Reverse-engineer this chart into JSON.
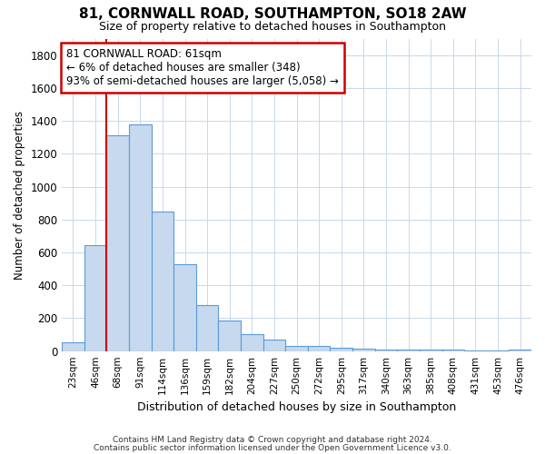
{
  "title1": "81, CORNWALL ROAD, SOUTHAMPTON, SO18 2AW",
  "title2": "Size of property relative to detached houses in Southampton",
  "xlabel": "Distribution of detached houses by size in Southampton",
  "ylabel": "Number of detached properties",
  "categories": [
    "23sqm",
    "46sqm",
    "68sqm",
    "91sqm",
    "114sqm",
    "136sqm",
    "159sqm",
    "182sqm",
    "204sqm",
    "227sqm",
    "250sqm",
    "272sqm",
    "295sqm",
    "317sqm",
    "340sqm",
    "363sqm",
    "385sqm",
    "408sqm",
    "431sqm",
    "453sqm",
    "476sqm"
  ],
  "values": [
    55,
    645,
    1310,
    1380,
    850,
    530,
    280,
    185,
    105,
    70,
    30,
    30,
    22,
    15,
    10,
    10,
    8,
    8,
    5,
    5,
    8
  ],
  "bar_color": "#c6d9ee",
  "bar_edge_color": "#5b9bd5",
  "vline_x_index": 2,
  "vline_color": "#cc0000",
  "annotation_text": "81 CORNWALL ROAD: 61sqm\n← 6% of detached houses are smaller (348)\n93% of semi-detached houses are larger (5,058) →",
  "annotation_box_color": "#ffffff",
  "annotation_box_edge": "#cc0000",
  "ylim": [
    0,
    1900
  ],
  "yticks": [
    0,
    200,
    400,
    600,
    800,
    1000,
    1200,
    1400,
    1600,
    1800
  ],
  "footer1": "Contains HM Land Registry data © Crown copyright and database right 2024.",
  "footer2": "Contains public sector information licensed under the Open Government Licence v3.0.",
  "bg_color": "#ffffff",
  "plot_bg": "#ffffff",
  "grid_color": "#c8d8ea"
}
